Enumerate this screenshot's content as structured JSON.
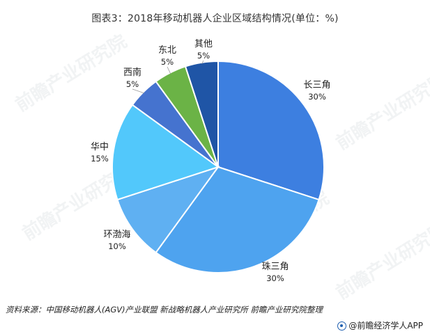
{
  "title": "图表3：2018年移动机器人企业区域结构情况(单位：%)",
  "source": "资料来源：中国移动机器人(AGV)产业联盟  新战略机器人产业研究所 前瞻产业研究院整理",
  "footer_brand": "@前瞻经济学人APP",
  "watermark_text": "前瞻产业研究院",
  "chart_data": {
    "type": "pie",
    "title": "图表3：2018年移动机器人企业区域结构情况(单位：%)",
    "unit": "%",
    "start_angle_deg": 0,
    "direction": "clockwise",
    "slices": [
      {
        "label": "长三角",
        "value": 30,
        "value_label": "30%",
        "color": "#3d7fe0"
      },
      {
        "label": "珠三角",
        "value": 30,
        "value_label": "30%",
        "color": "#4ea3ef"
      },
      {
        "label": "环渤海",
        "value": 10,
        "value_label": "10%",
        "color": "#5fb0f2"
      },
      {
        "label": "华中",
        "value": 15,
        "value_label": "15%",
        "color": "#52c8fb"
      },
      {
        "label": "西南",
        "value": 5,
        "value_label": "5%",
        "color": "#4573cf"
      },
      {
        "label": "东北",
        "value": 5,
        "value_label": "5%",
        "color": "#6bb346"
      },
      {
        "label": "其他",
        "value": 5,
        "value_label": "5%",
        "color": "#1f55a6"
      }
    ]
  }
}
